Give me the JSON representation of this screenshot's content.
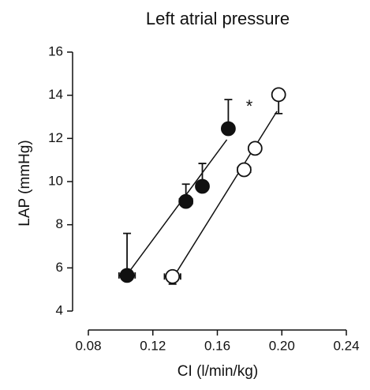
{
  "chart_data": {
    "type": "scatter",
    "title": "Left atrial pressure",
    "x_label": "CI (l/min/kg)",
    "y_label": "LAP (mmHg)",
    "xlim": [
      0.08,
      0.24
    ],
    "ylim": [
      4,
      16
    ],
    "xticks": [
      0.08,
      0.12,
      0.16,
      {
        "value": 0.2,
        "label": "0.20"
      },
      0.24
    ],
    "yticks": [
      4,
      6,
      8,
      10,
      12,
      14,
      16
    ],
    "annotations": [
      {
        "text": "*"
      }
    ],
    "series": [
      {
        "color": "#111111",
        "marker": "filled",
        "yerr_direction": "up",
        "x": [
          0.104,
          0.1405,
          0.1507,
          0.1668
        ],
        "values": [
          5.65,
          9.08,
          9.78,
          12.45
        ],
        "xerr": [
          0.005,
          0.004,
          0.003,
          0.001
        ],
        "yerr": [
          1.95,
          0.8,
          1.06,
          1.35
        ],
        "fit_x": [
          0.105,
          0.1659
        ],
        "fit_y": [
          5.79,
          11.94
        ]
      },
      {
        "color": "#111111",
        "marker": "open",
        "yerr_direction": "down",
        "x": [
          0.1322,
          0.1766,
          0.1834,
          0.198
        ],
        "values": [
          5.6,
          10.55,
          11.54,
          14.03
        ],
        "xerr": [
          0.005,
          0.004,
          0.001,
          0.001
        ],
        "yerr": [
          0.35,
          0.2,
          0.2,
          0.88
        ],
        "fit_x": [
          0.1337,
          0.197
        ],
        "fit_y": [
          5.68,
          13.26
        ]
      }
    ]
  }
}
